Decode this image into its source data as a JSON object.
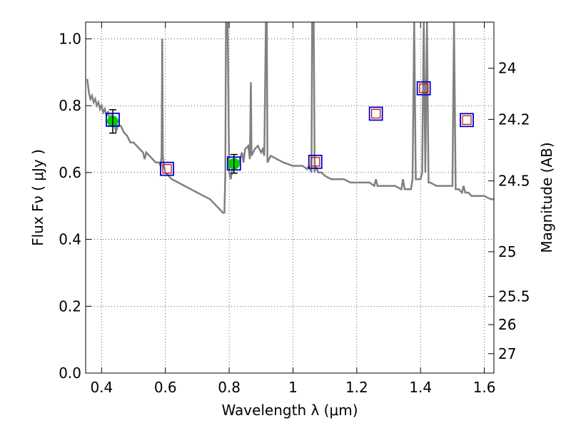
{
  "chart_data": {
    "type": "scatter",
    "xlabel": "Wavelength  λ (μm)",
    "ylabel": "Flux  Fν  ( μJy )",
    "ylabel_right": "Magnitude (AB)",
    "xlim": [
      0.35,
      1.63
    ],
    "ylim": [
      0.0,
      1.05
    ],
    "grid": true,
    "x_ticks": [
      0.4,
      0.6,
      0.8,
      1.0,
      1.2,
      1.4,
      1.6
    ],
    "x_tick_labels": [
      "0.4",
      "0.6",
      "0.8",
      "1",
      "1.2",
      "1.4",
      "1.6"
    ],
    "y_ticks": [
      0.0,
      0.2,
      0.4,
      0.6,
      0.8,
      1.0
    ],
    "y_tick_labels": [
      "0.0",
      "0.2",
      "0.4",
      "0.6",
      "0.8",
      "1.0"
    ],
    "right_ticks": [
      {
        "flux": 0.912,
        "label": "24"
      },
      {
        "flux": 0.759,
        "label": "24.2"
      },
      {
        "flux": 0.575,
        "label": "24.5"
      },
      {
        "flux": 0.363,
        "label": "25"
      },
      {
        "flux": 0.229,
        "label": "25.5"
      },
      {
        "flux": 0.145,
        "label": "26"
      },
      {
        "flux": 0.058,
        "label": "27"
      }
    ],
    "series": [
      {
        "kind": "spectrum",
        "color": "#808080",
        "points": [
          [
            0.355,
            0.88
          ],
          [
            0.36,
            0.84
          ],
          [
            0.365,
            0.82
          ],
          [
            0.37,
            0.83
          ],
          [
            0.375,
            0.81
          ],
          [
            0.38,
            0.82
          ],
          [
            0.385,
            0.8
          ],
          [
            0.39,
            0.81
          ],
          [
            0.395,
            0.79
          ],
          [
            0.4,
            0.8
          ],
          [
            0.405,
            0.78
          ],
          [
            0.41,
            0.79
          ],
          [
            0.415,
            0.77
          ],
          [
            0.42,
            0.78
          ],
          [
            0.425,
            0.76
          ],
          [
            0.43,
            0.77
          ],
          [
            0.44,
            0.75
          ],
          [
            0.445,
            0.72
          ],
          [
            0.45,
            0.74
          ],
          [
            0.46,
            0.74
          ],
          [
            0.47,
            0.72
          ],
          [
            0.48,
            0.71
          ],
          [
            0.49,
            0.69
          ],
          [
            0.5,
            0.69
          ],
          [
            0.51,
            0.68
          ],
          [
            0.52,
            0.67
          ],
          [
            0.53,
            0.66
          ],
          [
            0.535,
            0.64
          ],
          [
            0.54,
            0.66
          ],
          [
            0.55,
            0.65
          ],
          [
            0.56,
            0.64
          ],
          [
            0.57,
            0.63
          ],
          [
            0.58,
            0.63
          ],
          [
            0.585,
            0.62
          ],
          [
            0.588,
            0.65
          ],
          [
            0.59,
            1.0
          ],
          [
            0.592,
            0.65
          ],
          [
            0.595,
            0.62
          ],
          [
            0.6,
            0.6
          ],
          [
            0.61,
            0.59
          ],
          [
            0.62,
            0.58
          ],
          [
            0.64,
            0.57
          ],
          [
            0.66,
            0.56
          ],
          [
            0.68,
            0.55
          ],
          [
            0.7,
            0.54
          ],
          [
            0.72,
            0.53
          ],
          [
            0.74,
            0.52
          ],
          [
            0.76,
            0.5
          ],
          [
            0.77,
            0.49
          ],
          [
            0.78,
            0.48
          ],
          [
            0.785,
            0.48
          ],
          [
            0.788,
            0.6
          ],
          [
            0.79,
            1.05
          ],
          [
            0.795,
            1.05
          ],
          [
            0.8,
            0.6
          ],
          [
            0.805,
            0.58
          ],
          [
            0.81,
            0.61
          ],
          [
            0.82,
            0.62
          ],
          [
            0.83,
            0.63
          ],
          [
            0.84,
            0.66
          ],
          [
            0.845,
            0.63
          ],
          [
            0.85,
            0.67
          ],
          [
            0.86,
            0.68
          ],
          [
            0.865,
            0.64
          ],
          [
            0.868,
            0.87
          ],
          [
            0.87,
            0.65
          ],
          [
            0.88,
            0.67
          ],
          [
            0.89,
            0.68
          ],
          [
            0.9,
            0.66
          ],
          [
            0.905,
            0.67
          ],
          [
            0.91,
            0.65
          ],
          [
            0.915,
            1.05
          ],
          [
            0.918,
            1.05
          ],
          [
            0.92,
            0.63
          ],
          [
            0.93,
            0.65
          ],
          [
            0.95,
            0.64
          ],
          [
            0.97,
            0.63
          ],
          [
            1.0,
            0.62
          ],
          [
            1.03,
            0.62
          ],
          [
            1.045,
            0.61
          ],
          [
            1.05,
            0.62
          ],
          [
            1.058,
            0.6
          ],
          [
            1.06,
            1.05
          ],
          [
            1.065,
            1.05
          ],
          [
            1.068,
            0.6
          ],
          [
            1.07,
            0.62
          ],
          [
            1.08,
            0.6
          ],
          [
            1.09,
            0.6
          ],
          [
            1.1,
            0.59
          ],
          [
            1.12,
            0.58
          ],
          [
            1.14,
            0.58
          ],
          [
            1.16,
            0.58
          ],
          [
            1.18,
            0.57
          ],
          [
            1.2,
            0.57
          ],
          [
            1.22,
            0.57
          ],
          [
            1.24,
            0.57
          ],
          [
            1.255,
            0.56
          ],
          [
            1.26,
            0.58
          ],
          [
            1.265,
            0.56
          ],
          [
            1.28,
            0.56
          ],
          [
            1.3,
            0.56
          ],
          [
            1.32,
            0.56
          ],
          [
            1.34,
            0.55
          ],
          [
            1.345,
            0.58
          ],
          [
            1.35,
            0.55
          ],
          [
            1.36,
            0.55
          ],
          [
            1.37,
            0.55
          ],
          [
            1.375,
            0.58
          ],
          [
            1.38,
            1.05
          ],
          [
            1.385,
            0.58
          ],
          [
            1.39,
            0.58
          ],
          [
            1.4,
            0.58
          ],
          [
            1.405,
            0.6
          ],
          [
            1.41,
            1.05
          ],
          [
            1.415,
            0.6
          ],
          [
            1.42,
            1.05
          ],
          [
            1.425,
            0.57
          ],
          [
            1.43,
            0.57
          ],
          [
            1.45,
            0.56
          ],
          [
            1.47,
            0.56
          ],
          [
            1.49,
            0.56
          ],
          [
            1.5,
            0.56
          ],
          [
            1.505,
            1.05
          ],
          [
            1.51,
            0.55
          ],
          [
            1.52,
            0.55
          ],
          [
            1.53,
            0.54
          ],
          [
            1.535,
            0.56
          ],
          [
            1.54,
            0.54
          ],
          [
            1.55,
            0.54
          ],
          [
            1.56,
            0.53
          ],
          [
            1.58,
            0.53
          ],
          [
            1.6,
            0.53
          ],
          [
            1.62,
            0.52
          ],
          [
            1.63,
            0.52
          ]
        ]
      },
      {
        "kind": "observed",
        "color": "#00cc00",
        "points": [
          {
            "x": 0.435,
            "y": 0.753,
            "yerr": 0.035
          },
          {
            "x": 0.815,
            "y": 0.626,
            "yerr": 0.028
          }
        ]
      },
      {
        "kind": "model-large-square",
        "color": "#0000cc",
        "points": [
          {
            "x": 0.435,
            "y": 0.758
          },
          {
            "x": 0.605,
            "y": 0.611
          },
          {
            "x": 0.815,
            "y": 0.627
          },
          {
            "x": 1.07,
            "y": 0.632
          },
          {
            "x": 1.26,
            "y": 0.776
          },
          {
            "x": 1.41,
            "y": 0.852
          },
          {
            "x": 1.545,
            "y": 0.757
          }
        ]
      },
      {
        "kind": "model-small-square",
        "color": "#cc0000",
        "points": [
          {
            "x": 0.605,
            "y": 0.611
          },
          {
            "x": 1.07,
            "y": 0.632
          },
          {
            "x": 1.26,
            "y": 0.776
          },
          {
            "x": 1.41,
            "y": 0.852
          },
          {
            "x": 1.545,
            "y": 0.757
          }
        ]
      }
    ]
  }
}
